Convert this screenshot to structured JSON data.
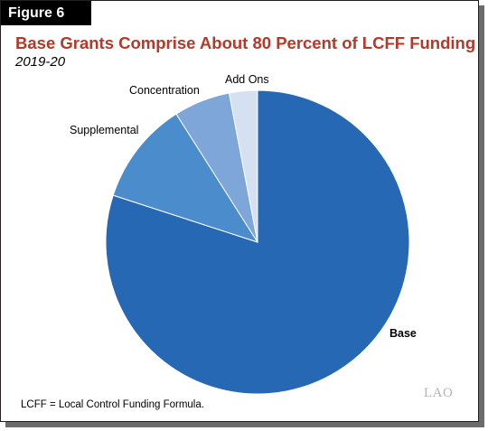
{
  "figure_label": "Figure 6",
  "title": "Base Grants Comprise About 80 Percent of LCFF Funding",
  "subtitle": "2019-20",
  "note": "LCFF = Local Control Funding Formula.",
  "logo_text": "LAO",
  "colors": {
    "title": "#b23a2a",
    "base": "#2668b3",
    "supplemental": "#4b8ccc",
    "concentration": "#7fa6d8",
    "add_ons": "#d5e0f1"
  },
  "chart_data": {
    "type": "pie",
    "title": "Base Grants Comprise About 80 Percent of LCFF Funding",
    "subtitle": "2019-20",
    "start_angle_deg": 0,
    "direction": "clockwise",
    "slices": [
      {
        "name": "Base",
        "value": 80,
        "color": "#2668b3",
        "bold": true
      },
      {
        "name": "Supplemental",
        "value": 11,
        "color": "#4b8ccc",
        "bold": false
      },
      {
        "name": "Concentration",
        "value": 6,
        "color": "#7fa6d8",
        "bold": false
      },
      {
        "name": "Add Ons",
        "value": 3,
        "color": "#d5e0f1",
        "bold": false
      }
    ],
    "legend": "none",
    "data_labels": "outside"
  }
}
